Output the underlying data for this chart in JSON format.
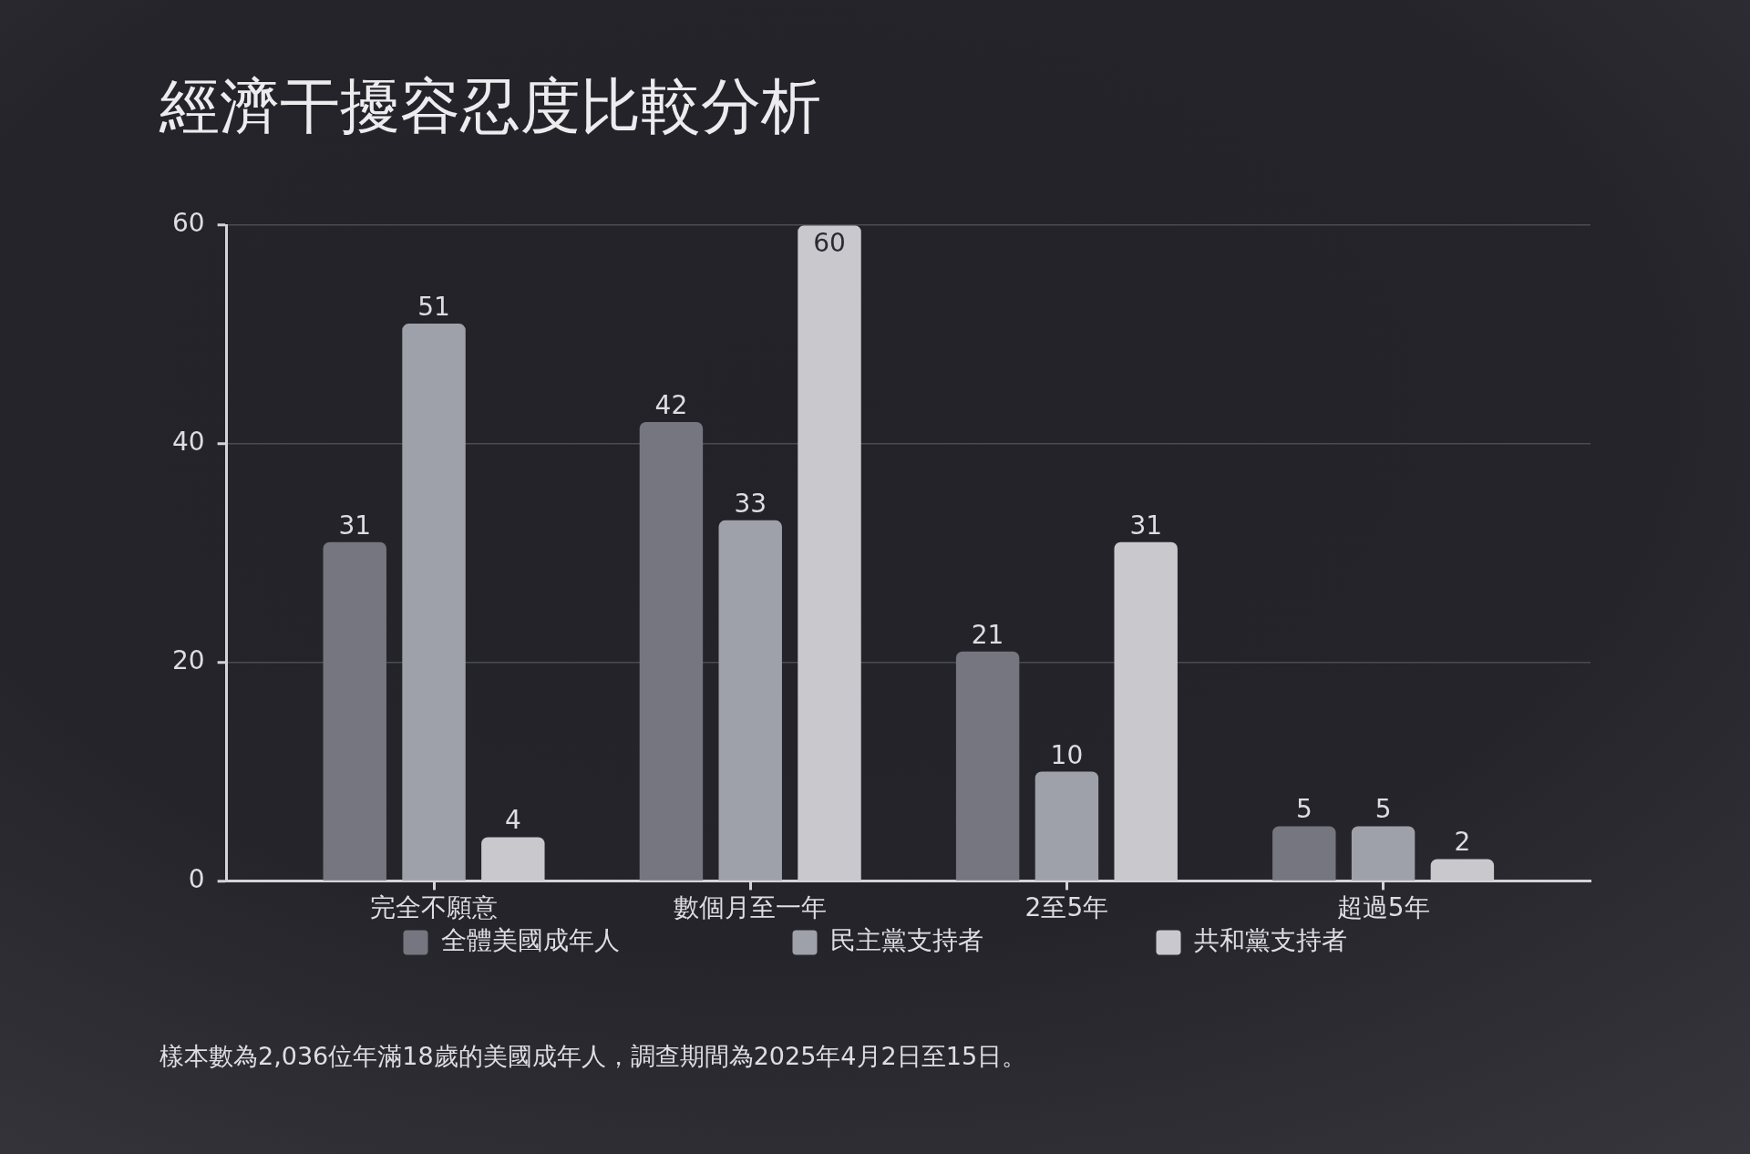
{
  "chart_data": {
    "type": "bar",
    "title": "經濟干擾容忍度比較分析",
    "categories": [
      "完全不願意",
      "數個月至一年",
      "2至5年",
      "超過5年"
    ],
    "series": [
      {
        "name": "全體美國成年人",
        "color": "#75767f",
        "values": [
          31,
          42,
          21,
          5
        ]
      },
      {
        "name": "民主黨支持者",
        "color": "#9ea1a9",
        "values": [
          51,
          33,
          10,
          5
        ]
      },
      {
        "name": "共和黨支持者",
        "color": "#c8c8cd",
        "values": [
          4,
          60,
          31,
          2
        ]
      }
    ],
    "ylim": [
      0,
      60
    ],
    "yticks": [
      0,
      20,
      40,
      60
    ],
    "grid": "y",
    "legend": "bottom",
    "data_labels": true,
    "annotations": [
      "樣本數為2,036位年滿18歲的美國成年人，調查期間為2025年4月2日至15日。"
    ]
  }
}
